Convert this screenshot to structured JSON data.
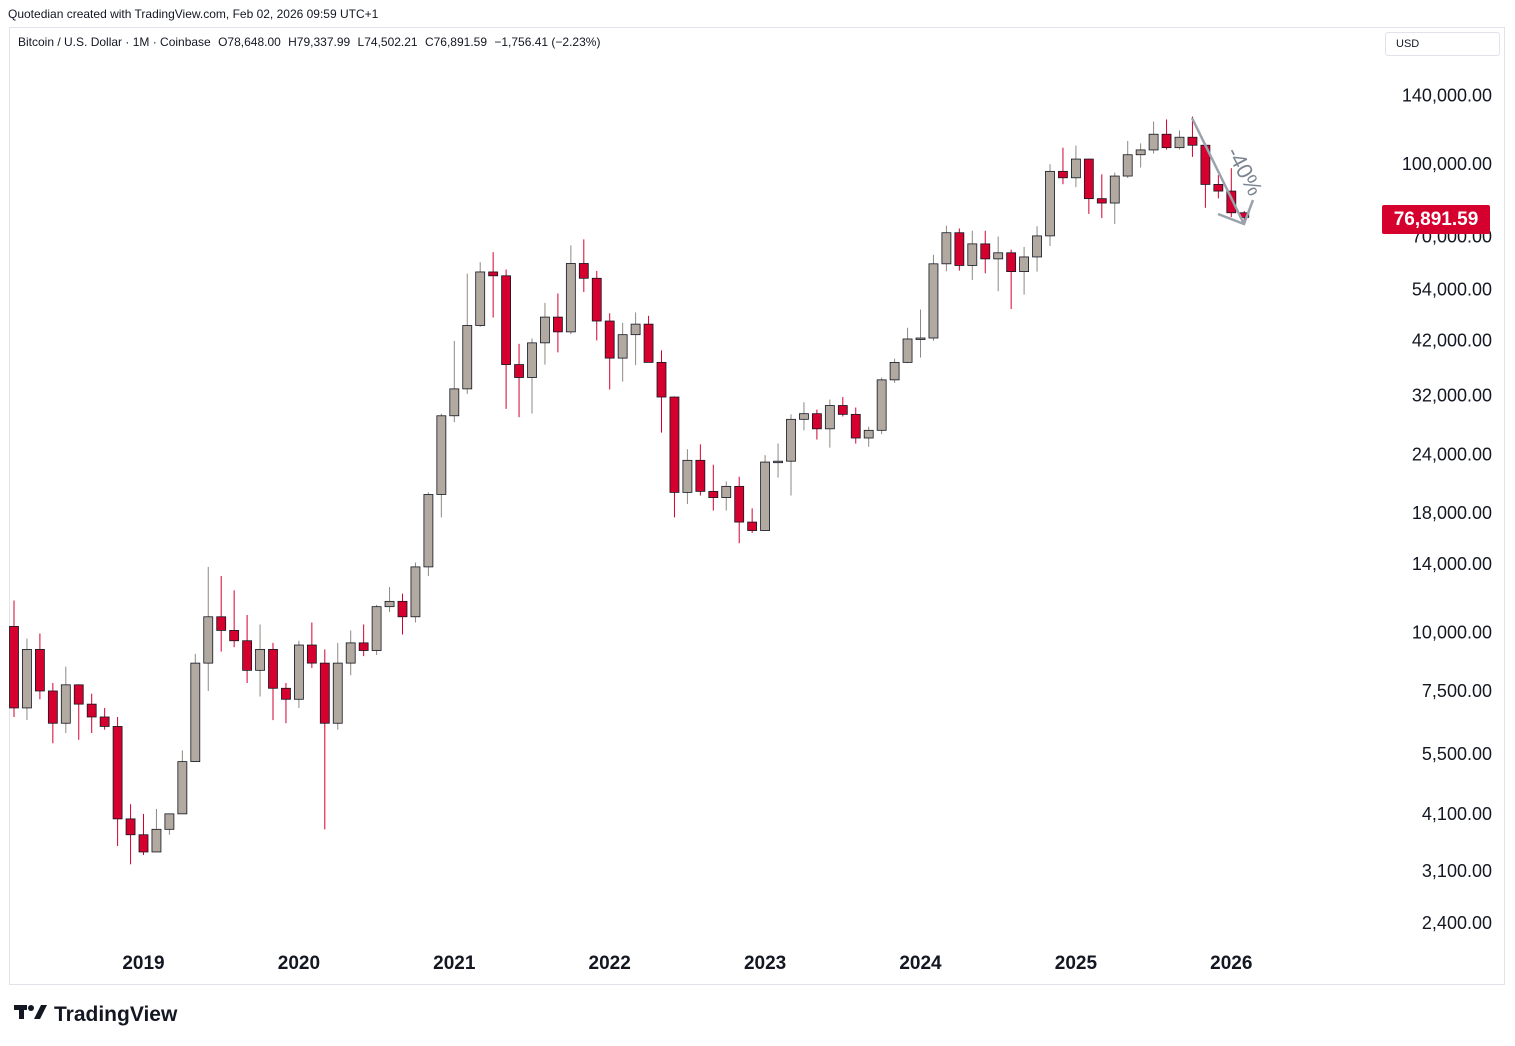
{
  "header": {
    "attribution": "Quotedian created with TradingView.com, Feb 02, 2026 09:59 UTC+1"
  },
  "legend": {
    "symbol": "Bitcoin / U.S. Dollar · 1M · Coinbase",
    "open": "O78,648.00",
    "high": "H79,337.99",
    "low": "L74,502.21",
    "close": "C76,891.59",
    "change": "−1,756.41 (−2.23%)"
  },
  "currency": "USD",
  "last_price_label": "76,891.59",
  "annotation_text": "-40%",
  "brand": "TradingView",
  "colors": {
    "up": "#b2a9a0",
    "down": "#d6002f",
    "wick_up": "#8e8882",
    "annotation": "#7a8591"
  },
  "chart_data": {
    "type": "candlestick",
    "title": "Bitcoin / U.S. Dollar · 1M · Coinbase",
    "scale": "log",
    "ylim": [
      2100,
      195000
    ],
    "y_ticks": [
      {
        "value": 140000,
        "label": "140,000.00"
      },
      {
        "value": 100000,
        "label": "100,000.00"
      },
      {
        "value": 70000,
        "label": "70,000.00"
      },
      {
        "value": 54000,
        "label": "54,000.00"
      },
      {
        "value": 42000,
        "label": "42,000.00"
      },
      {
        "value": 32000,
        "label": "32,000.00"
      },
      {
        "value": 24000,
        "label": "24,000.00"
      },
      {
        "value": 18000,
        "label": "18,000.00"
      },
      {
        "value": 14000,
        "label": "14,000.00"
      },
      {
        "value": 10000,
        "label": "10,000.00"
      },
      {
        "value": 7500,
        "label": "7,500.00"
      },
      {
        "value": 5500,
        "label": "5,500.00"
      },
      {
        "value": 4100,
        "label": "4,100.00"
      },
      {
        "value": 3100,
        "label": "3,100.00"
      },
      {
        "value": 2400,
        "label": "2,400.00"
      }
    ],
    "x_ticks": [
      "2019",
      "2020",
      "2021",
      "2022",
      "2023",
      "2024",
      "2025",
      "2026"
    ],
    "start": "2018-03",
    "candles": [
      {
        "month": "2018-03",
        "o": 10300,
        "h": 11700,
        "l": 6600,
        "c": 6900
      },
      {
        "month": "2018-04",
        "o": 6900,
        "h": 9700,
        "l": 6500,
        "c": 9200
      },
      {
        "month": "2018-05",
        "o": 9200,
        "h": 9950,
        "l": 7200,
        "c": 7500
      },
      {
        "month": "2018-06",
        "o": 7500,
        "h": 7800,
        "l": 5800,
        "c": 6400
      },
      {
        "month": "2018-07",
        "o": 6400,
        "h": 8450,
        "l": 6100,
        "c": 7730
      },
      {
        "month": "2018-08",
        "o": 7730,
        "h": 7750,
        "l": 5900,
        "c": 7030
      },
      {
        "month": "2018-09",
        "o": 7030,
        "h": 7400,
        "l": 6100,
        "c": 6600
      },
      {
        "month": "2018-10",
        "o": 6600,
        "h": 6900,
        "l": 6200,
        "c": 6300
      },
      {
        "month": "2018-11",
        "o": 6300,
        "h": 6600,
        "l": 3500,
        "c": 4000
      },
      {
        "month": "2018-12",
        "o": 4000,
        "h": 4300,
        "l": 3200,
        "c": 3700
      },
      {
        "month": "2019-01",
        "o": 3700,
        "h": 4100,
        "l": 3350,
        "c": 3400
      },
      {
        "month": "2019-02",
        "o": 3400,
        "h": 4200,
        "l": 3400,
        "c": 3800
      },
      {
        "month": "2019-03",
        "o": 3800,
        "h": 4100,
        "l": 3700,
        "c": 4100
      },
      {
        "month": "2019-04",
        "o": 4100,
        "h": 5600,
        "l": 4100,
        "c": 5300
      },
      {
        "month": "2019-05",
        "o": 5300,
        "h": 9000,
        "l": 5300,
        "c": 8600
      },
      {
        "month": "2019-06",
        "o": 8600,
        "h": 13800,
        "l": 7500,
        "c": 10800
      },
      {
        "month": "2019-07",
        "o": 10800,
        "h": 13200,
        "l": 9100,
        "c": 10100
      },
      {
        "month": "2019-08",
        "o": 10100,
        "h": 12300,
        "l": 9300,
        "c": 9600
      },
      {
        "month": "2019-09",
        "o": 9600,
        "h": 10900,
        "l": 7800,
        "c": 8300
      },
      {
        "month": "2019-10",
        "o": 8300,
        "h": 10400,
        "l": 7300,
        "c": 9200
      },
      {
        "month": "2019-11",
        "o": 9200,
        "h": 9500,
        "l": 6500,
        "c": 7600
      },
      {
        "month": "2019-12",
        "o": 7600,
        "h": 7800,
        "l": 6400,
        "c": 7200
      },
      {
        "month": "2020-01",
        "o": 7200,
        "h": 9600,
        "l": 6900,
        "c": 9400
      },
      {
        "month": "2020-02",
        "o": 9400,
        "h": 10500,
        "l": 8400,
        "c": 8600
      },
      {
        "month": "2020-03",
        "o": 8600,
        "h": 9200,
        "l": 3800,
        "c": 6400
      },
      {
        "month": "2020-04",
        "o": 6400,
        "h": 9500,
        "l": 6200,
        "c": 8600
      },
      {
        "month": "2020-05",
        "o": 8600,
        "h": 10100,
        "l": 8100,
        "c": 9500
      },
      {
        "month": "2020-06",
        "o": 9500,
        "h": 10400,
        "l": 8900,
        "c": 9150
      },
      {
        "month": "2020-07",
        "o": 9150,
        "h": 11450,
        "l": 8950,
        "c": 11350
      },
      {
        "month": "2020-08",
        "o": 11350,
        "h": 12500,
        "l": 11050,
        "c": 11650
      },
      {
        "month": "2020-09",
        "o": 11650,
        "h": 12100,
        "l": 9900,
        "c": 10800
      },
      {
        "month": "2020-10",
        "o": 10800,
        "h": 14100,
        "l": 10500,
        "c": 13800
      },
      {
        "month": "2020-11",
        "o": 13800,
        "h": 19900,
        "l": 13200,
        "c": 19700
      },
      {
        "month": "2020-12",
        "o": 19700,
        "h": 29300,
        "l": 17600,
        "c": 29000
      },
      {
        "month": "2021-01",
        "o": 29000,
        "h": 41900,
        "l": 28100,
        "c": 33100
      },
      {
        "month": "2021-02",
        "o": 33100,
        "h": 58300,
        "l": 32300,
        "c": 45200
      },
      {
        "month": "2021-03",
        "o": 45200,
        "h": 61700,
        "l": 44900,
        "c": 58800
      },
      {
        "month": "2021-04",
        "o": 58800,
        "h": 64800,
        "l": 47000,
        "c": 57700
      },
      {
        "month": "2021-05",
        "o": 57700,
        "h": 59500,
        "l": 30000,
        "c": 37300
      },
      {
        "month": "2021-06",
        "o": 37300,
        "h": 41300,
        "l": 28800,
        "c": 35000
      },
      {
        "month": "2021-07",
        "o": 35000,
        "h": 42400,
        "l": 29300,
        "c": 41500
      },
      {
        "month": "2021-08",
        "o": 41500,
        "h": 50500,
        "l": 37300,
        "c": 47100
      },
      {
        "month": "2021-09",
        "o": 47100,
        "h": 52900,
        "l": 39600,
        "c": 43800
      },
      {
        "month": "2021-10",
        "o": 43800,
        "h": 67000,
        "l": 43300,
        "c": 61300
      },
      {
        "month": "2021-11",
        "o": 61300,
        "h": 69000,
        "l": 53300,
        "c": 57000
      },
      {
        "month": "2021-12",
        "o": 57000,
        "h": 59100,
        "l": 42000,
        "c": 46200
      },
      {
        "month": "2022-01",
        "o": 46200,
        "h": 48000,
        "l": 33000,
        "c": 38500
      },
      {
        "month": "2022-02",
        "o": 38500,
        "h": 45800,
        "l": 34300,
        "c": 43200
      },
      {
        "month": "2022-03",
        "o": 43200,
        "h": 48200,
        "l": 37200,
        "c": 45500
      },
      {
        "month": "2022-04",
        "o": 45500,
        "h": 47400,
        "l": 37700,
        "c": 37700
      },
      {
        "month": "2022-05",
        "o": 37700,
        "h": 40000,
        "l": 26700,
        "c": 31800
      },
      {
        "month": "2022-06",
        "o": 31800,
        "h": 31900,
        "l": 17600,
        "c": 19900
      },
      {
        "month": "2022-07",
        "o": 19900,
        "h": 24600,
        "l": 18800,
        "c": 23300
      },
      {
        "month": "2022-08",
        "o": 23300,
        "h": 25200,
        "l": 19600,
        "c": 20000
      },
      {
        "month": "2022-09",
        "o": 20000,
        "h": 22800,
        "l": 18200,
        "c": 19400
      },
      {
        "month": "2022-10",
        "o": 19400,
        "h": 21000,
        "l": 18200,
        "c": 20500
      },
      {
        "month": "2022-11",
        "o": 20500,
        "h": 21500,
        "l": 15500,
        "c": 17200
      },
      {
        "month": "2022-12",
        "o": 17200,
        "h": 18400,
        "l": 16300,
        "c": 16500
      },
      {
        "month": "2023-01",
        "o": 16500,
        "h": 23900,
        "l": 16500,
        "c": 23100
      },
      {
        "month": "2023-02",
        "o": 23100,
        "h": 25300,
        "l": 21400,
        "c": 23200
      },
      {
        "month": "2023-03",
        "o": 23200,
        "h": 29200,
        "l": 19600,
        "c": 28500
      },
      {
        "month": "2023-04",
        "o": 28500,
        "h": 31000,
        "l": 27000,
        "c": 29300
      },
      {
        "month": "2023-05",
        "o": 29300,
        "h": 29900,
        "l": 25800,
        "c": 27200
      },
      {
        "month": "2023-06",
        "o": 27200,
        "h": 31400,
        "l": 24800,
        "c": 30500
      },
      {
        "month": "2023-07",
        "o": 30500,
        "h": 31800,
        "l": 28900,
        "c": 29200
      },
      {
        "month": "2023-08",
        "o": 29200,
        "h": 30200,
        "l": 25300,
        "c": 26000
      },
      {
        "month": "2023-09",
        "o": 26000,
        "h": 27500,
        "l": 24900,
        "c": 27000
      },
      {
        "month": "2023-10",
        "o": 27000,
        "h": 35000,
        "l": 26500,
        "c": 34600
      },
      {
        "month": "2023-11",
        "o": 34600,
        "h": 38400,
        "l": 34100,
        "c": 37700
      },
      {
        "month": "2023-12",
        "o": 37700,
        "h": 44700,
        "l": 37600,
        "c": 42300
      },
      {
        "month": "2024-01",
        "o": 42300,
        "h": 48900,
        "l": 38600,
        "c": 42500
      },
      {
        "month": "2024-02",
        "o": 42500,
        "h": 64000,
        "l": 41900,
        "c": 61200
      },
      {
        "month": "2024-03",
        "o": 61200,
        "h": 73800,
        "l": 59000,
        "c": 71300
      },
      {
        "month": "2024-04",
        "o": 71300,
        "h": 72800,
        "l": 59200,
        "c": 60700
      },
      {
        "month": "2024-05",
        "o": 60700,
        "h": 72000,
        "l": 56500,
        "c": 67500
      },
      {
        "month": "2024-06",
        "o": 67500,
        "h": 72000,
        "l": 58400,
        "c": 62700
      },
      {
        "month": "2024-07",
        "o": 62700,
        "h": 70000,
        "l": 53500,
        "c": 64600
      },
      {
        "month": "2024-08",
        "o": 64600,
        "h": 65600,
        "l": 49000,
        "c": 58900
      },
      {
        "month": "2024-09",
        "o": 58900,
        "h": 66500,
        "l": 52600,
        "c": 63300
      },
      {
        "month": "2024-10",
        "o": 63300,
        "h": 73600,
        "l": 58900,
        "c": 70200
      },
      {
        "month": "2024-11",
        "o": 70200,
        "h": 99800,
        "l": 66800,
        "c": 96400
      },
      {
        "month": "2024-12",
        "o": 96400,
        "h": 108300,
        "l": 90500,
        "c": 93400
      },
      {
        "month": "2025-01",
        "o": 93400,
        "h": 109400,
        "l": 89200,
        "c": 102400
      },
      {
        "month": "2025-02",
        "o": 102400,
        "h": 102500,
        "l": 78200,
        "c": 84300
      },
      {
        "month": "2025-03",
        "o": 84300,
        "h": 95000,
        "l": 76600,
        "c": 82500
      },
      {
        "month": "2025-04",
        "o": 82500,
        "h": 95800,
        "l": 74400,
        "c": 94200
      },
      {
        "month": "2025-05",
        "o": 94200,
        "h": 111900,
        "l": 93300,
        "c": 104600
      },
      {
        "month": "2025-06",
        "o": 104600,
        "h": 110600,
        "l": 98200,
        "c": 107100
      },
      {
        "month": "2025-07",
        "o": 107100,
        "h": 123200,
        "l": 105200,
        "c": 115700
      },
      {
        "month": "2025-08",
        "o": 115700,
        "h": 124400,
        "l": 107300,
        "c": 108300
      },
      {
        "month": "2025-09",
        "o": 108300,
        "h": 117900,
        "l": 107300,
        "c": 114000
      },
      {
        "month": "2025-10",
        "o": 114000,
        "h": 126200,
        "l": 103500,
        "c": 109600
      },
      {
        "month": "2025-11",
        "o": 109600,
        "h": 110700,
        "l": 80600,
        "c": 90400
      },
      {
        "month": "2025-12",
        "o": 90400,
        "h": 94600,
        "l": 84400,
        "c": 87500
      },
      {
        "month": "2026-01",
        "o": 87500,
        "h": 97900,
        "l": 77000,
        "c": 78648
      },
      {
        "month": "2026-02",
        "o": 78648,
        "h": 79337.99,
        "l": 74502.21,
        "c": 76891.59
      }
    ]
  }
}
